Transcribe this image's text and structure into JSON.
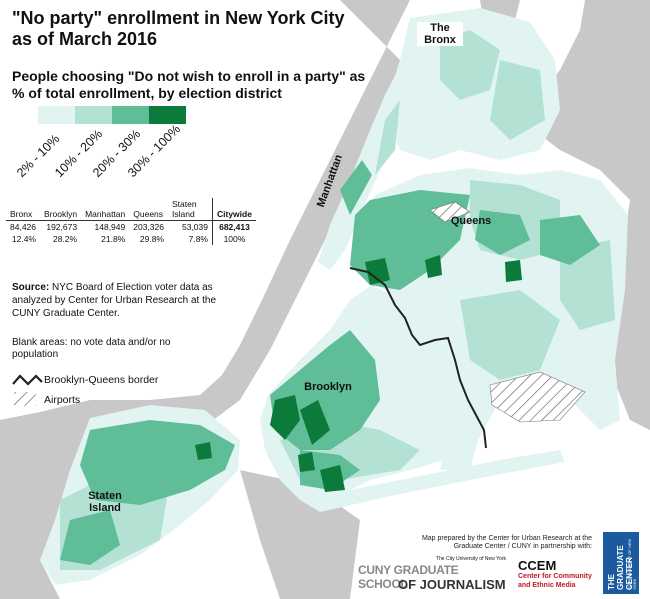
{
  "title": "\"No party\" enrollment in New York City as of March 2016",
  "subtitle": "People choosing \"Do not wish to enroll in a party\" as % of total enrollment, by election district",
  "legend": {
    "bins": [
      {
        "label": "2% - 10%",
        "color": "#e2f4f1"
      },
      {
        "label": "10% - 20%",
        "color": "#b3e2d5"
      },
      {
        "label": "20% - 30%",
        "color": "#5fbd98"
      },
      {
        "label": "30% - 100%",
        "color": "#0b7a3b"
      }
    ],
    "border_label": "Brooklyn-Queens border",
    "airports_label": "Airports"
  },
  "table": {
    "headers": [
      "Bronx",
      "Brooklyn",
      "Manhattan",
      "Queens",
      "Staten Island",
      "Citywide"
    ],
    "counts": [
      "84,426",
      "192,673",
      "148,949",
      "203,326",
      "53,039",
      "682,413"
    ],
    "percents": [
      "12.4%",
      "28.2%",
      "21.8%",
      "29.8%",
      "7.8%",
      "100%"
    ]
  },
  "source": {
    "bold": "Source:",
    "text": " NYC Board of Election voter data as analyzed by Center for Urban Research at the CUNY Graduate Center."
  },
  "blank_note": "Blank areas: no vote data and/or no population",
  "boroughs": {
    "bronx": "The Bronx",
    "manhattan": "Manhattan",
    "queens": "Queens",
    "brooklyn": "Brooklyn",
    "staten_island": "Staten Island"
  },
  "credit": "Map prepared by the Center for Urban Research at the Graduate Center / CUNY in partnership with:",
  "logos": {
    "journalism_small": "The City University of New York",
    "journalism_line1": "CUNY GRADUATE SCHOOL",
    "journalism_line2": "OF JOURNALISM",
    "ccem_name": "CCEM",
    "ccem_line1": "Center for Community",
    "ccem_line2": "and Ethnic Media",
    "gc_name": "THE GRADUATE CENTER",
    "gc_sub": "CITY UNIVERSITY OF NEW YORK"
  },
  "colors": {
    "water": "#ffffff",
    "land_other": "#c8c8c8",
    "nyc_base": "#e2f4f1",
    "border_line": "#222222"
  }
}
